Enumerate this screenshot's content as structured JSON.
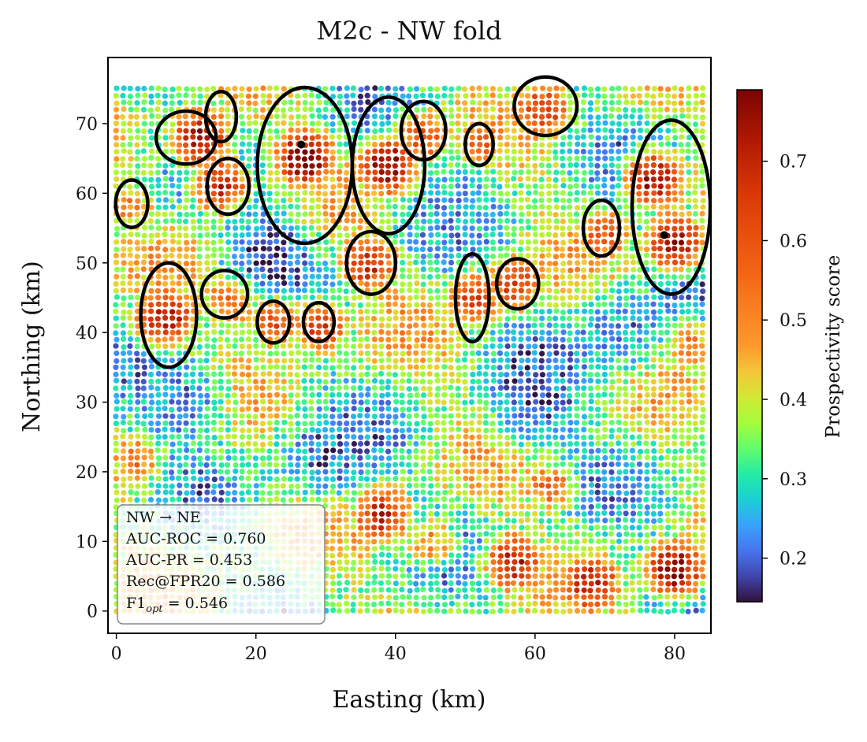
{
  "chart_data": {
    "type": "scatter",
    "title": "M2c - NW fold",
    "xlabel": "Easting (km)",
    "ylabel": "Northing (km)",
    "xlim": [
      -1.2,
      85.2
    ],
    "ylim": [
      -3.2,
      79.5
    ],
    "x_ticks": [
      0,
      20,
      40,
      60,
      80
    ],
    "y_ticks": [
      0,
      10,
      20,
      30,
      40,
      50,
      60,
      70
    ],
    "grid": false,
    "colorbar": {
      "label": "Prospectivity score",
      "range": [
        0.145,
        0.79
      ],
      "ticks": [
        0.2,
        0.3,
        0.4,
        0.5,
        0.6,
        0.7
      ],
      "colormap": "turbo"
    },
    "point_grid": {
      "x_start": 0,
      "x_end": 84,
      "y_start": 0,
      "y_end": 75,
      "step": 1
    },
    "high_zones": [
      {
        "x": 12,
        "y": 68,
        "value": 0.76
      },
      {
        "x": 15,
        "y": 61,
        "value": 0.7
      },
      {
        "x": 27,
        "y": 65,
        "value": 0.82
      },
      {
        "x": 39,
        "y": 64,
        "value": 0.8
      },
      {
        "x": 44,
        "y": 68,
        "value": 0.62
      },
      {
        "x": 52,
        "y": 67,
        "value": 0.6
      },
      {
        "x": 61,
        "y": 72,
        "value": 0.66
      },
      {
        "x": 7,
        "y": 42,
        "value": 0.76
      },
      {
        "x": 17,
        "y": 45,
        "value": 0.66
      },
      {
        "x": 23,
        "y": 42,
        "value": 0.66
      },
      {
        "x": 29,
        "y": 41,
        "value": 0.66
      },
      {
        "x": 36,
        "y": 50,
        "value": 0.7
      },
      {
        "x": 51,
        "y": 45,
        "value": 0.66
      },
      {
        "x": 57,
        "y": 47,
        "value": 0.66
      },
      {
        "x": 77,
        "y": 62,
        "value": 0.76
      },
      {
        "x": 80,
        "y": 53,
        "value": 0.76
      },
      {
        "x": 70,
        "y": 54,
        "value": 0.6
      },
      {
        "x": 57,
        "y": 7,
        "value": 0.72
      },
      {
        "x": 68,
        "y": 4,
        "value": 0.72
      },
      {
        "x": 80,
        "y": 6,
        "value": 0.8
      },
      {
        "x": 38,
        "y": 14,
        "value": 0.72
      },
      {
        "x": 62,
        "y": 18,
        "value": 0.56
      },
      {
        "x": 45,
        "y": 10,
        "value": 0.5
      },
      {
        "x": 3,
        "y": 22,
        "value": 0.55
      },
      {
        "x": 82,
        "y": 38,
        "value": 0.55
      },
      {
        "x": 2,
        "y": 58,
        "value": 0.5
      }
    ],
    "low_zones": [
      {
        "x": 22,
        "y": 51,
        "value": 0.16
      },
      {
        "x": 60,
        "y": 30,
        "value": 0.18
      },
      {
        "x": 72,
        "y": 40,
        "value": 0.22
      },
      {
        "x": 10,
        "y": 30,
        "value": 0.22
      },
      {
        "x": 50,
        "y": 58,
        "value": 0.25
      },
      {
        "x": 30,
        "y": 22,
        "value": 0.2
      }
    ],
    "contours": [
      {
        "cx": 10,
        "cy": 68,
        "rx": 4.3,
        "ry": 3.8
      },
      {
        "cx": 15,
        "cy": 71,
        "rx": 2.2,
        "ry": 3.6
      },
      {
        "cx": 16,
        "cy": 61,
        "rx": 3.0,
        "ry": 4.0
      },
      {
        "cx": 2.2,
        "cy": 58.5,
        "rx": 2.3,
        "ry": 3.4
      },
      {
        "cx": 27,
        "cy": 64,
        "rx": 6.8,
        "ry": 11.2
      },
      {
        "cx": 39,
        "cy": 64,
        "rx": 5.2,
        "ry": 9.8
      },
      {
        "cx": 44,
        "cy": 69,
        "rx": 3.2,
        "ry": 4.2
      },
      {
        "cx": 52,
        "cy": 67,
        "rx": 2.0,
        "ry": 3.0
      },
      {
        "cx": 61.5,
        "cy": 72.5,
        "rx": 4.5,
        "ry": 4.2
      },
      {
        "cx": 7.5,
        "cy": 42.5,
        "rx": 4.0,
        "ry": 7.5
      },
      {
        "cx": 15.5,
        "cy": 45.5,
        "rx": 3.3,
        "ry": 3.4
      },
      {
        "cx": 22.5,
        "cy": 41.5,
        "rx": 2.3,
        "ry": 3.0
      },
      {
        "cx": 29,
        "cy": 41.5,
        "rx": 2.2,
        "ry": 2.8
      },
      {
        "cx": 36.5,
        "cy": 50,
        "rx": 3.5,
        "ry": 4.5
      },
      {
        "cx": 51,
        "cy": 45,
        "rx": 2.4,
        "ry": 6.3
      },
      {
        "cx": 57.5,
        "cy": 47,
        "rx": 3.0,
        "ry": 3.6
      },
      {
        "cx": 69.5,
        "cy": 55,
        "rx": 2.6,
        "ry": 4.0
      },
      {
        "cx": 79.5,
        "cy": 58,
        "rx": 5.6,
        "ry": 12.5
      }
    ],
    "contour_markers": [
      {
        "x": 26.5,
        "y": 67
      },
      {
        "x": 78.5,
        "y": 54
      }
    ],
    "annotation": {
      "line1": "NW → NE",
      "line2": "AUC-ROC  = 0.760",
      "line3": "AUC-PR  = 0.453",
      "line4": "Rec@FPR20  = 0.586",
      "line5_main": "F1",
      "line5_sub": "opt",
      "line5_value": " = 0.546"
    }
  }
}
